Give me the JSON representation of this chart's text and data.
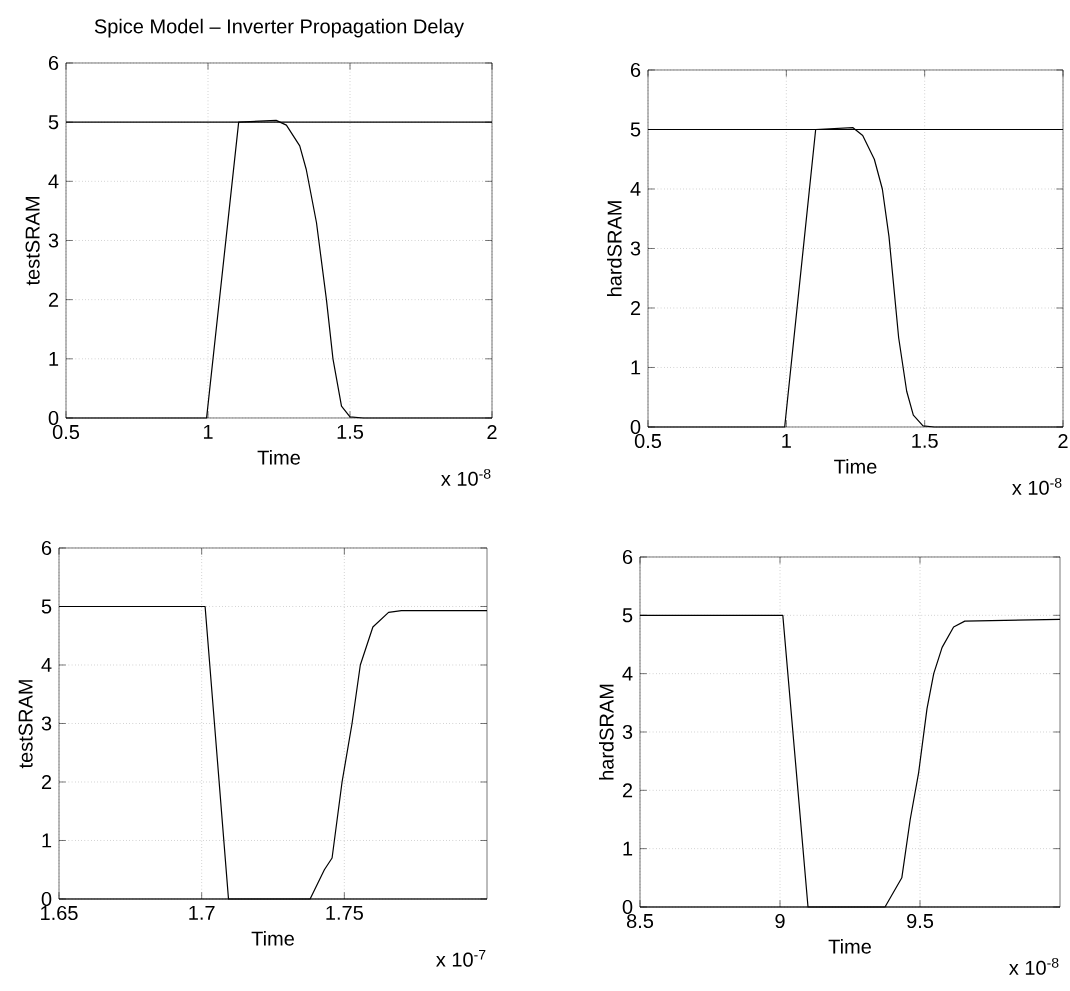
{
  "chart_data": [
    {
      "type": "line",
      "title": "Spice Model – Inverter Propagation Delay",
      "xlabel": "Time",
      "ylabel": "testSRAM",
      "xlim": [
        0.5,
        2
      ],
      "ylim": [
        0,
        6
      ],
      "xticks": [
        0.5,
        1,
        1.5,
        2
      ],
      "yticks": [
        0,
        1,
        2,
        3,
        4,
        5,
        6
      ],
      "grid": true,
      "line_style": "solid",
      "annotations": [
        "x 10$^{-8}$"
      ],
      "series": [
        {
          "color": "#000000",
          "x": [
            0.5,
            2
          ],
          "values": [
            5,
            5
          ]
        },
        {
          "color": "#000000",
          "x": [
            0.5,
            0.995,
            1.108,
            1.24,
            1.276,
            1.323,
            1.346,
            1.382,
            1.417,
            1.44,
            1.47,
            1.5,
            1.547,
            2
          ],
          "values": [
            0,
            0,
            5,
            5.03,
            4.95,
            4.6,
            4.2,
            3.3,
            2,
            1,
            0.2,
            0.02,
            0,
            0
          ]
        }
      ]
    },
    {
      "type": "line",
      "xlabel": "Time",
      "ylabel": "hardSRAM",
      "xlim": [
        0.5,
        2
      ],
      "ylim": [
        0,
        6
      ],
      "xticks": [
        0.5,
        1,
        1.5,
        2
      ],
      "yticks": [
        0,
        1,
        2,
        3,
        4,
        5,
        6
      ],
      "grid": true,
      "line_style": "solid",
      "annotations": [
        "x 10$^{-8}$"
      ],
      "series": [
        {
          "color": "#000000",
          "x": [
            0.5,
            2
          ],
          "values": [
            5,
            5
          ]
        },
        {
          "color": "#000000",
          "x": [
            0.5,
            0.994,
            1.106,
            1.241,
            1.276,
            1.318,
            1.347,
            1.371,
            1.406,
            1.435,
            1.459,
            1.494,
            1.535,
            2
          ],
          "values": [
            0,
            0,
            5,
            5.03,
            4.9,
            4.5,
            4,
            3.2,
            1.5,
            0.6,
            0.2,
            0.02,
            0,
            0
          ]
        }
      ]
    },
    {
      "type": "line",
      "xlabel": "Time",
      "ylabel": "testSRAM",
      "xlim": [
        1.65,
        1.8
      ],
      "ylim": [
        0,
        6
      ],
      "xticks": [
        1.65,
        1.7,
        1.75
      ],
      "yticks": [
        0,
        1,
        2,
        3,
        4,
        5,
        6
      ],
      "grid": true,
      "line_style": "solid",
      "annotations": [
        "x 10$^{-7}$"
      ],
      "series": [
        {
          "color": "#000000",
          "x": [
            1.65,
            1.7012,
            1.7094,
            1.8
          ],
          "values": [
            5,
            5,
            0,
            0
          ]
        },
        {
          "color": "#000000",
          "x": [
            1.65,
            1.738,
            1.743,
            1.7457,
            1.7492,
            1.7527,
            1.7556,
            1.76,
            1.7655,
            1.77,
            1.8
          ],
          "values": [
            0,
            0,
            0.5,
            0.7,
            2,
            3,
            4,
            4.65,
            4.9,
            4.93,
            4.93
          ]
        }
      ]
    },
    {
      "type": "line",
      "xlabel": "Time",
      "ylabel": "hardSRAM",
      "xlim": [
        8.5,
        10
      ],
      "ylim": [
        0,
        6
      ],
      "xticks": [
        8.5,
        9,
        9.5
      ],
      "yticks": [
        0,
        1,
        2,
        3,
        4,
        5,
        6
      ],
      "grid": true,
      "line_style": "solid",
      "annotations": [
        "x 10$^{-8}$"
      ],
      "series": [
        {
          "color": "#000000",
          "x": [
            8.5,
            9.01,
            9.1,
            10
          ],
          "values": [
            5,
            5,
            0,
            0
          ]
        },
        {
          "color": "#000000",
          "x": [
            8.5,
            9.375,
            9.435,
            9.465,
            9.495,
            9.525,
            9.549,
            9.579,
            9.62,
            9.66,
            10
          ],
          "values": [
            0,
            0,
            0.5,
            1.5,
            2.3,
            3.4,
            4,
            4.45,
            4.8,
            4.9,
            4.93
          ]
        }
      ]
    }
  ]
}
